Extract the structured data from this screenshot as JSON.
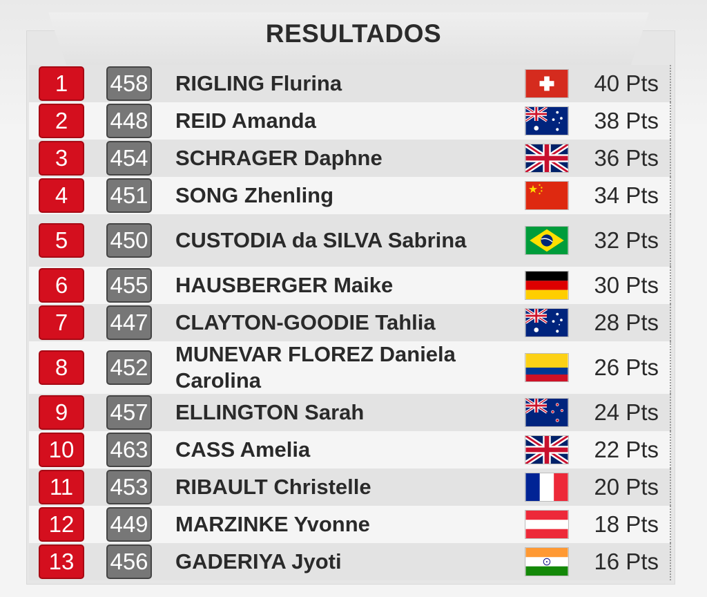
{
  "title": "RESULTADOS",
  "rows": [
    {
      "rank": "1",
      "bib": "458",
      "name": "RIGLING Flurina",
      "flag": "switzerland-flag-icon",
      "pts": "40 Pts"
    },
    {
      "rank": "2",
      "bib": "448",
      "name": "REID Amanda",
      "flag": "australia-flag-icon",
      "pts": "38 Pts"
    },
    {
      "rank": "3",
      "bib": "454",
      "name": "SCHRAGER Daphne",
      "flag": "uk-flag-icon",
      "pts": "36 Pts"
    },
    {
      "rank": "4",
      "bib": "451",
      "name": "SONG Zhenling",
      "flag": "china-flag-icon",
      "pts": "34 Pts"
    },
    {
      "rank": "5",
      "bib": "450",
      "name": "CUSTODIA da SILVA Sabrina",
      "flag": "brazil-flag-icon",
      "pts": "32 Pts"
    },
    {
      "rank": "6",
      "bib": "455",
      "name": "HAUSBERGER Maike",
      "flag": "germany-flag-icon",
      "pts": "30 Pts"
    },
    {
      "rank": "7",
      "bib": "447",
      "name": "CLAYTON-GOODIE Tahlia",
      "flag": "australia-flag-icon",
      "pts": "28 Pts"
    },
    {
      "rank": "8",
      "bib": "452",
      "name": "MUNEVAR FLOREZ Daniela Carolina",
      "flag": "colombia-flag-icon",
      "pts": "26 Pts"
    },
    {
      "rank": "9",
      "bib": "457",
      "name": "ELLINGTON Sarah",
      "flag": "new-zealand-flag-icon",
      "pts": "24 Pts"
    },
    {
      "rank": "10",
      "bib": "463",
      "name": "CASS Amelia",
      "flag": "uk-flag-icon",
      "pts": "22 Pts"
    },
    {
      "rank": "11",
      "bib": "453",
      "name": "RIBAULT Christelle",
      "flag": "france-flag-icon",
      "pts": "20 Pts"
    },
    {
      "rank": "12",
      "bib": "449",
      "name": "MARZINKE Yvonne",
      "flag": "austria-flag-icon",
      "pts": "18 Pts"
    },
    {
      "rank": "13",
      "bib": "456",
      "name": "GADERIYA Jyoti",
      "flag": "india-flag-icon",
      "pts": "16 Pts"
    }
  ],
  "colors": {
    "rank_badge": "#d40f1e",
    "bib_badge": "#777777"
  }
}
